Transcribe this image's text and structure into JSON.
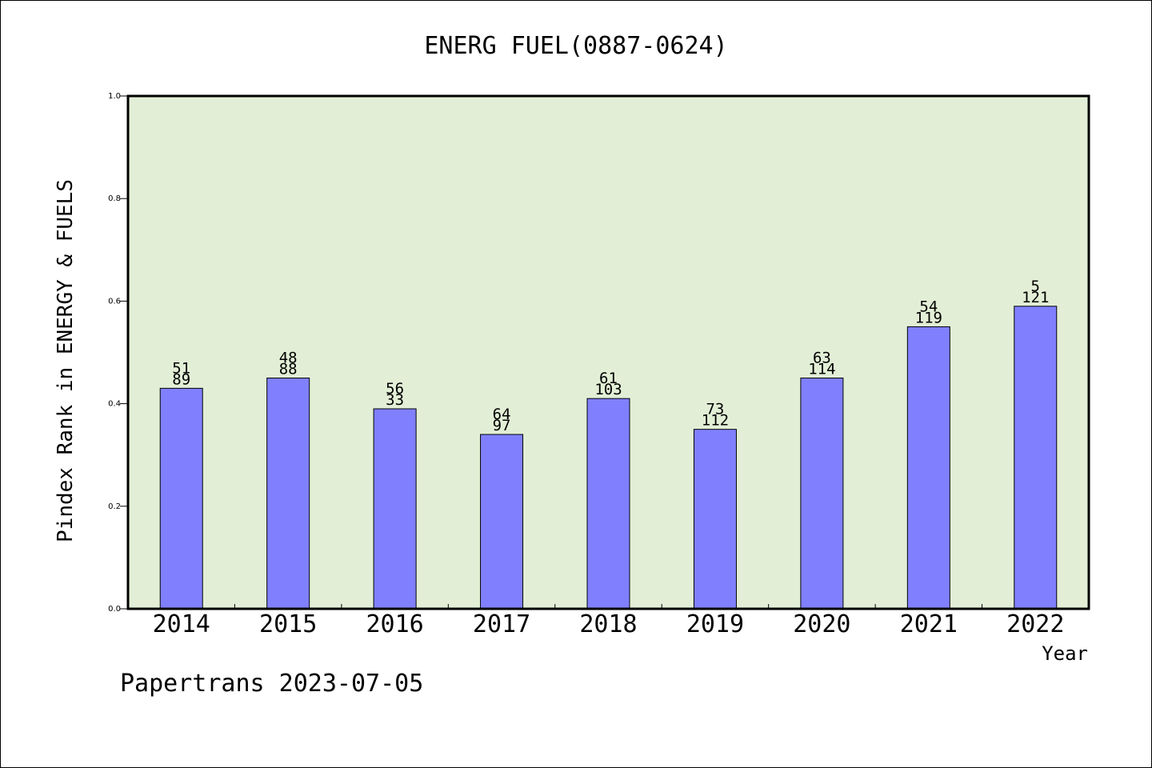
{
  "colors": {
    "plot_background": "#e2efd6",
    "bar_fill": "#8080ff",
    "axis": "#000000",
    "text": "#000000"
  },
  "chart_data": {
    "type": "bar",
    "title": "ENERG FUEL(0887-0624)",
    "xlabel": "Year",
    "ylabel": "Pindex Rank in ENERGY & FUELS",
    "ylim": [
      0,
      1.0
    ],
    "y_ticks": [
      "0.0",
      "0.2",
      "0.4",
      "0.6",
      "0.8",
      "1.0"
    ],
    "categories": [
      "2014",
      "2015",
      "2016",
      "2017",
      "2018",
      "2019",
      "2020",
      "2021",
      "2022"
    ],
    "values": [
      0.43,
      0.45,
      0.39,
      0.34,
      0.41,
      0.35,
      0.45,
      0.55,
      0.59
    ],
    "labels_top": [
      "51",
      "48",
      "56",
      "64",
      "61",
      "73",
      "63",
      "54",
      "5"
    ],
    "labels_bottom": [
      "89",
      "88",
      "33",
      "97",
      "103",
      "112",
      "114",
      "119",
      "121"
    ],
    "grid": false,
    "legend": "none"
  },
  "footer": {
    "text": "Papertrans 2023-07-05"
  }
}
